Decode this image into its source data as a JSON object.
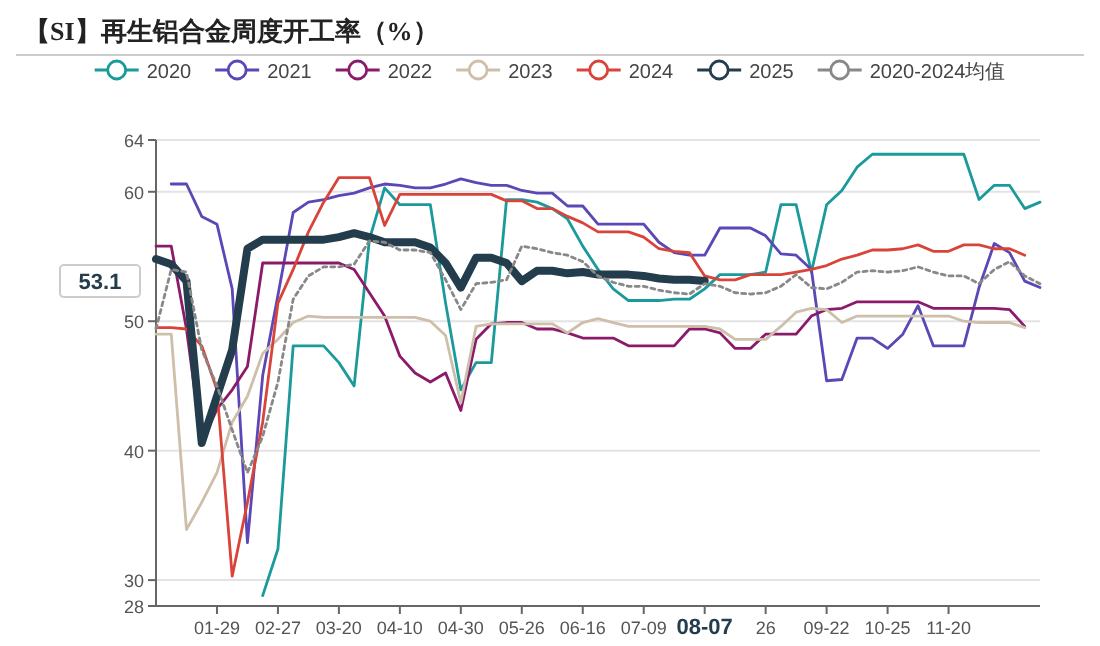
{
  "chart_data": {
    "type": "line",
    "title": "【SI】再生铝合金周度开工率（%）",
    "categories": [
      null,
      null,
      null,
      null,
      "01-29",
      null,
      null,
      null,
      "02-27",
      null,
      null,
      null,
      "03-20",
      null,
      null,
      null,
      "04-10",
      null,
      null,
      null,
      "04-30",
      null,
      null,
      null,
      "05-26",
      null,
      null,
      null,
      "06-16",
      null,
      null,
      null,
      "07-09",
      null,
      null,
      null,
      "08-07",
      null,
      null,
      null,
      "26",
      null,
      null,
      null,
      "09-22",
      null,
      null,
      null,
      "10-25",
      null,
      null,
      null,
      "11-20",
      null,
      null,
      null,
      null,
      null,
      null
    ],
    "ylim": [
      28,
      64
    ],
    "yticks": [
      28,
      30,
      40,
      50,
      60,
      64
    ],
    "grid": "y",
    "legend": "top",
    "annotations": [
      "53.1"
    ],
    "series": [
      {
        "name": "2020",
        "color": "#1a9a9a",
        "values": [
          null,
          null,
          null,
          null,
          null,
          null,
          null,
          28.8,
          32.4,
          48.1,
          48.1,
          48.1,
          46.8,
          45,
          56.3,
          60.3,
          59,
          59,
          59,
          51.4,
          44.7,
          46.8,
          46.8,
          59.4,
          59.4,
          59.2,
          58.7,
          57.9,
          55.8,
          54,
          52.5,
          51.6,
          51.6,
          51.6,
          51.7,
          51.7,
          52.5,
          53.6,
          53.6,
          53.6,
          53.8,
          59,
          59,
          53.8,
          59,
          60.1,
          61.9,
          62.9,
          62.9,
          62.9,
          62.9,
          62.9,
          62.9,
          62.9,
          59.4,
          60.5,
          60.5,
          58.7,
          59.2
        ]
      },
      {
        "name": "2021",
        "color": "#5b47b5",
        "values": [
          null,
          60.6,
          60.6,
          58.1,
          57.5,
          52.5,
          32.9,
          45.8,
          52,
          58.4,
          59.2,
          59.4,
          59.7,
          59.9,
          60.3,
          60.6,
          60.5,
          60.3,
          60.3,
          60.6,
          61,
          60.7,
          60.5,
          60.5,
          60.1,
          59.9,
          59.9,
          58.9,
          58.9,
          57.5,
          57.5,
          57.5,
          57.5,
          56.1,
          55.3,
          55.1,
          55.1,
          57.2,
          57.2,
          57.2,
          56.6,
          55.2,
          55.1,
          54,
          45.4,
          45.5,
          48.7,
          48.7,
          47.9,
          49,
          51.2,
          48.1,
          48.1,
          48.1,
          52.6,
          56,
          55.3,
          53.1,
          52.6
        ]
      },
      {
        "name": "2022",
        "color": "#8b1a6b",
        "values": [
          55.8,
          55.8,
          49.4,
          40.6,
          43.2,
          44.7,
          46.5,
          54.5,
          54.5,
          54.5,
          54.5,
          54.5,
          54.5,
          54,
          52.2,
          50.4,
          47.3,
          46,
          45.3,
          46,
          43.1,
          48.6,
          49.8,
          49.9,
          49.9,
          49.4,
          49.4,
          49.1,
          48.7,
          48.7,
          48.7,
          48.1,
          48.1,
          48.1,
          48.1,
          49.4,
          49.4,
          49.1,
          47.9,
          47.9,
          49,
          49,
          49,
          50.4,
          50.9,
          51,
          51.5,
          51.5,
          51.5,
          51.5,
          51.5,
          51,
          51,
          51,
          51,
          51,
          50.9,
          49.6,
          null
        ]
      },
      {
        "name": "2023",
        "color": "#cdbfa9",
        "values": [
          49,
          49,
          33.9,
          36,
          38.3,
          42.2,
          44.2,
          47.5,
          48.6,
          49.9,
          50.4,
          50.3,
          50.3,
          50.3,
          50.3,
          50.3,
          50.3,
          50.3,
          50,
          48.9,
          43.7,
          49.6,
          49.8,
          49.8,
          49.8,
          49.8,
          49.8,
          49.1,
          49.9,
          50.2,
          49.9,
          49.6,
          49.6,
          49.6,
          49.6,
          49.6,
          49.6,
          49.4,
          48.6,
          48.6,
          48.6,
          49.6,
          50.7,
          51,
          50.9,
          49.9,
          50.4,
          50.4,
          50.4,
          50.4,
          50.4,
          50.4,
          50.4,
          50,
          49.9,
          49.9,
          49.9,
          49.5,
          null
        ]
      },
      {
        "name": "2024",
        "color": "#d9443a",
        "values": [
          49.5,
          49.5,
          49.4,
          48.1,
          44.7,
          30.3,
          36,
          42.2,
          51.4,
          54,
          56.9,
          59.2,
          61.1,
          61.1,
          61.1,
          57.4,
          59.8,
          59.8,
          59.8,
          59.8,
          59.8,
          59.8,
          59.8,
          59.3,
          59.3,
          58.7,
          58.7,
          58.1,
          57.6,
          56.9,
          56.9,
          56.9,
          56.5,
          55.6,
          55.4,
          55.3,
          53.5,
          53.2,
          53.2,
          53.6,
          53.6,
          53.6,
          53.8,
          54,
          54.3,
          54.8,
          55.1,
          55.5,
          55.5,
          55.6,
          55.9,
          55.4,
          55.4,
          55.9,
          55.9,
          55.6,
          55.6,
          55.1,
          null
        ]
      },
      {
        "name": "2025",
        "color": "#233d4d",
        "values": [
          54.8,
          54.4,
          53.1,
          40.6,
          44.2,
          47.8,
          55.6,
          56.3,
          56.3,
          56.3,
          56.3,
          56.3,
          56.5,
          56.8,
          56.5,
          56.1,
          56.1,
          56.1,
          55.7,
          54.5,
          52.6,
          54.9,
          54.9,
          54.5,
          53.1,
          53.9,
          53.9,
          53.7,
          53.8,
          53.6,
          53.6,
          53.6,
          53.5,
          53.3,
          53.2,
          53.2,
          53.1,
          null,
          null,
          null,
          null,
          null,
          null,
          null,
          null,
          null,
          null,
          null,
          null,
          null,
          null,
          null,
          null,
          null,
          null,
          null,
          null,
          null,
          null
        ]
      },
      {
        "name": "2020-2024均值",
        "color": "#888888",
        "line_style": "dotted",
        "values": [
          49.4,
          54,
          53.8,
          47.8,
          45,
          41.6,
          38.3,
          41.1,
          45.3,
          51.7,
          53.5,
          54.2,
          54.2,
          54.4,
          56.2,
          56.1,
          55.5,
          55.5,
          55.3,
          53.2,
          50.9,
          52.9,
          53,
          53.2,
          55.8,
          55.6,
          55.3,
          55.1,
          54.6,
          53.5,
          53,
          52.7,
          52.7,
          52.4,
          52.2,
          52.1,
          52.9,
          52.7,
          52.2,
          52.1,
          52.2,
          52.7,
          53.6,
          52.6,
          52.5,
          53,
          53.8,
          53.9,
          53.8,
          53.9,
          54.2,
          53.8,
          53.5,
          53.5,
          52.9,
          54,
          54.6,
          53.5,
          52.9
        ]
      }
    ]
  }
}
